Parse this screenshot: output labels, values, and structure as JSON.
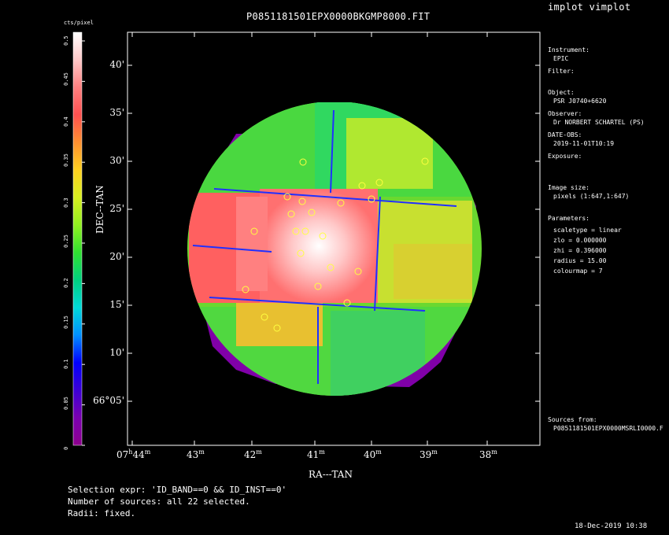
{
  "title": "P0851181501EPX0000BKGMP8000.FIT",
  "tool": "implot vimplot",
  "colorbar": {
    "label": "cts/pixel",
    "ticks": [
      "0",
      "0.05",
      "0.1",
      "0.15",
      "0.2",
      "0.25",
      "0.3",
      "0.35",
      "0.4",
      "0.45",
      "0.5"
    ],
    "colormap": [
      "#8e008e",
      "#7a00b0",
      "#3c00d6",
      "#0000ff",
      "#0090ff",
      "#00d8d8",
      "#00d080",
      "#30e030",
      "#90f020",
      "#d8f020",
      "#ffd020",
      "#ff9030",
      "#ff5050",
      "#ff8080",
      "#ffc8c8",
      "#ffffff"
    ]
  },
  "axes": {
    "xlabel": "RA---TAN",
    "ylabel": "DEC--TAN",
    "x_ticks": [
      {
        "text": "07",
        "sup": "h",
        "text2": "44",
        "sup2": "m"
      },
      {
        "text": "43",
        "sup": "m"
      },
      {
        "text": "42",
        "sup": "m"
      },
      {
        "text": "41",
        "sup": "m"
      },
      {
        "text": "40",
        "sup": "m"
      },
      {
        "text": "39",
        "sup": "m"
      },
      {
        "text": "38",
        "sup": "m"
      }
    ],
    "y_ticks": [
      "40'",
      "35'",
      "30'",
      "25'",
      "20'",
      "15'",
      "10'",
      "66°05'"
    ]
  },
  "info": {
    "instrument_label": "Instrument:",
    "instrument": "EPIC",
    "filter_label": "Filter:",
    "object_label": "Object:",
    "object": "PSR J0740+6620",
    "observer_label": "Observer:",
    "observer": "Dr NORBERT SCHARTEL (PS)",
    "date_label": "DATE-OBS:",
    "date": "2019-11-01T10:19",
    "exposure_label": "Exposure:",
    "image_size_label": "Image size:",
    "image_size": "pixels (1:647,1:647)",
    "parameters_label": "Parameters:",
    "params": [
      "scaletype = linear",
      "zlo = 0.000000",
      "zhi = 0.396000",
      "radius = 15.00",
      "colourmap = 7"
    ],
    "sources_label": "Sources from:",
    "sources": "P0851181501EPX0000MSRLI0000.F"
  },
  "footer": {
    "selection": "Selection expr: 'ID_BAND==0 && ID_INST==0'",
    "nsources": "Number of sources: all 22 selected.",
    "radii": "Radii: fixed.",
    "timestamp": "18-Dec-2019 10:38"
  },
  "chart_data": {
    "type": "heatmap",
    "title": "P0851181501EPX0000BKGMP8000.FIT",
    "xlabel": "RA---TAN",
    "ylabel": "DEC--TAN",
    "zlabel": "cts/pixel",
    "zlim": [
      0,
      0.5
    ],
    "scaletype": "linear",
    "sources_count": 22
  }
}
